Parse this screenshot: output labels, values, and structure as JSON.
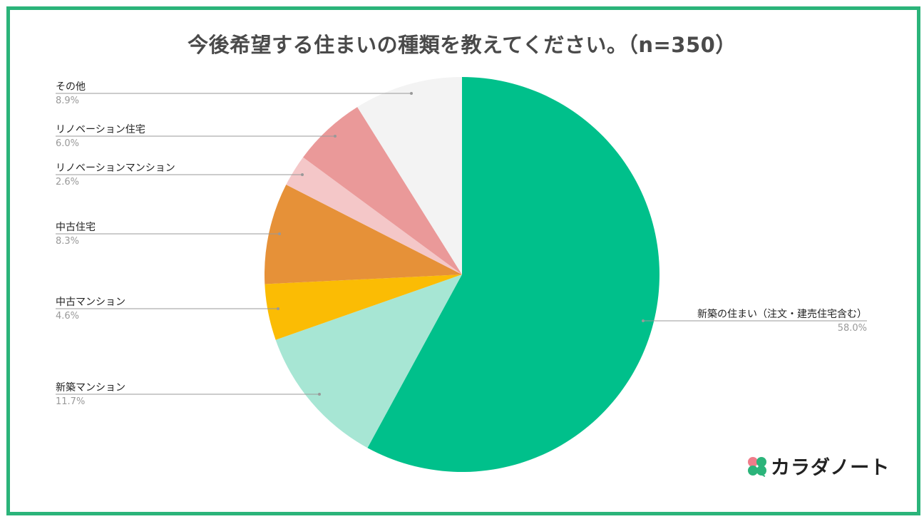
{
  "title": "今後希望する住まいの種類を教えてください。（n=350）",
  "brand": {
    "name": "カラダノート",
    "icon": "clover-icon",
    "colors": [
      "#f07c8a",
      "#2bb47a"
    ]
  },
  "frame_color": "#2bb47a",
  "chart_data": {
    "type": "pie",
    "slices": [
      {
        "name": "新築の住まい（注文・建売住宅含む）",
        "value": 58.0,
        "label": "58.0%",
        "color": "#00c08b"
      },
      {
        "name": "新築マンション",
        "value": 11.7,
        "label": "11.7%",
        "color": "#a7e6d4"
      },
      {
        "name": "中古マンション",
        "value": 4.6,
        "label": "4.6%",
        "color": "#fbbc04"
      },
      {
        "name": "中古住宅",
        "value": 8.3,
        "label": "8.3%",
        "color": "#e69138"
      },
      {
        "name": "リノベーションマンション",
        "value": 2.6,
        "label": "2.6%",
        "color": "#f4c7c8"
      },
      {
        "name": "リノベーション住宅",
        "value": 6.0,
        "label": "6.0%",
        "color": "#ea9999"
      },
      {
        "name": "その他",
        "value": 8.9,
        "label": "8.9%",
        "color": "#f3f3f3"
      }
    ],
    "legend": "none"
  }
}
